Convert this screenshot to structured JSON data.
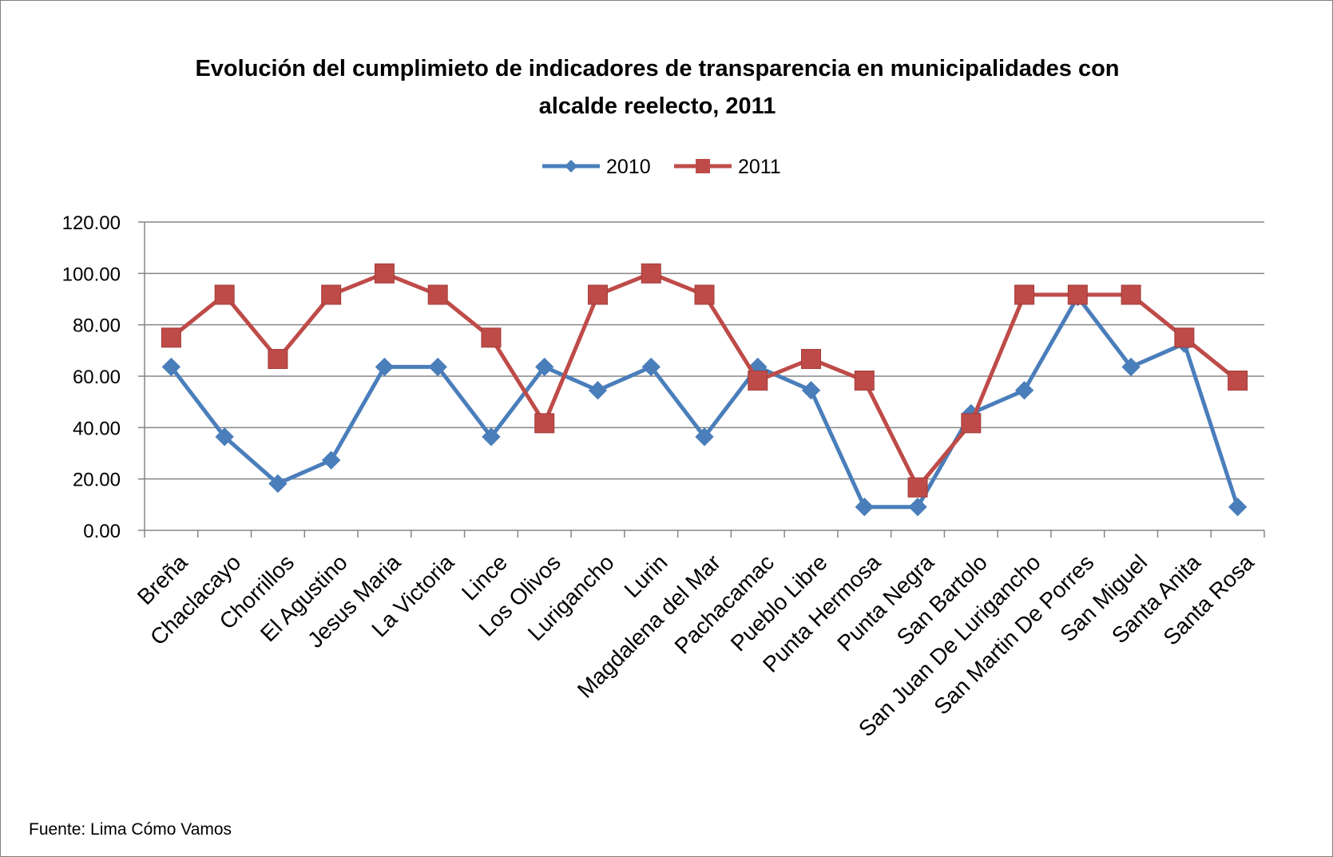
{
  "chart_data": {
    "type": "line",
    "title_lines": [
      "Evolución  del cumplimieto de indicadores  de transparencia  en municipalidades  con",
      "alcalde  reelecto, 2011"
    ],
    "xlabel": "",
    "ylabel": "",
    "ylim": [
      0,
      120
    ],
    "yticks": [
      0,
      20,
      40,
      60,
      80,
      100,
      120
    ],
    "ytick_labels": [
      "0.00",
      "20.00",
      "40.00",
      "60.00",
      "80.00",
      "100.00",
      "120.00"
    ],
    "grid": true,
    "legend_position": "top-center",
    "categories": [
      "Breña",
      "Chaclacayo",
      "Chorrillos",
      "El Agustino",
      "Jesus Maria",
      "La Victoria",
      "Lince",
      "Los Olivos",
      "Lurigancho",
      "Lurin",
      "Magdalena del Mar",
      "Pachacamac",
      "Pueblo Libre",
      "Punta Hermosa",
      "Punta Negra",
      "San Bartolo",
      "San Juan De Lurigancho",
      "San Martin De Porres",
      "San Miguel",
      "Santa Anita",
      "Santa Rosa"
    ],
    "series": [
      {
        "name": "2010",
        "color": "#4a7ebb",
        "marker": "diamond",
        "values": [
          63.6,
          36.4,
          18.2,
          27.3,
          63.6,
          63.6,
          36.4,
          63.6,
          54.5,
          63.6,
          36.4,
          63.6,
          54.5,
          9.1,
          9.1,
          45.5,
          54.5,
          90.9,
          63.6,
          72.7,
          9.1
        ]
      },
      {
        "name": "2011",
        "color": "#be4b48",
        "marker": "square",
        "values": [
          75.0,
          91.7,
          66.7,
          91.7,
          100.0,
          91.7,
          75.0,
          41.7,
          91.7,
          100.0,
          91.7,
          58.3,
          66.7,
          58.3,
          16.7,
          41.7,
          91.7,
          91.7,
          91.7,
          75.0,
          58.3
        ]
      }
    ],
    "source": "Fuente: Lima Cómo Vamos"
  }
}
